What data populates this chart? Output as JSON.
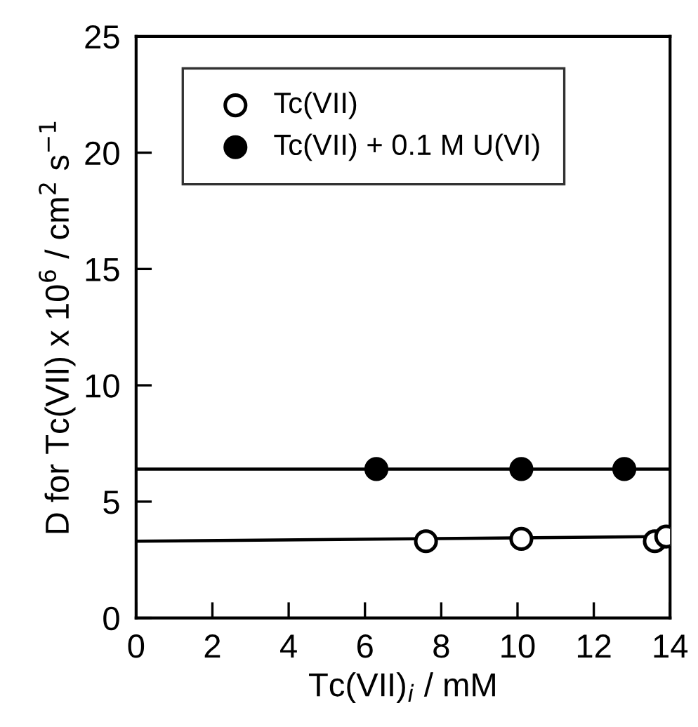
{
  "chart_data": {
    "type": "scatter",
    "xlabel": "Tc(VII)$_{i}$ / mM",
    "ylabel": "D for Tc(VII) x 10$^{6}$ / cm$^{2}$ s$^{−1}$",
    "xlim": [
      0,
      14
    ],
    "ylim": [
      0,
      25
    ],
    "xticks": [
      0,
      2,
      4,
      6,
      8,
      10,
      12,
      14
    ],
    "yticks": [
      0,
      5,
      10,
      15,
      20,
      25
    ],
    "grid": false,
    "legend": "top left",
    "series": [
      {
        "name": "Tc(VII)",
        "color": "#ffffff",
        "marker": "circle",
        "x": [
          7.6,
          10.1,
          13.6,
          13.9
        ],
        "values": [
          3.3,
          3.4,
          3.3,
          3.5
        ]
      },
      {
        "name": "Tc(VII) + 0.1 M U(VI)",
        "color": "#000000",
        "marker": "circle",
        "x": [
          6.3,
          10.1,
          12.8
        ],
        "values": [
          6.4,
          6.4,
          6.4
        ]
      },
      {
        "type": "line",
        "color": "#000000",
        "marker": "none",
        "line_style": "solid",
        "x": [
          0,
          14
        ],
        "values": [
          3.3,
          3.5
        ]
      },
      {
        "type": "line",
        "color": "#000000",
        "marker": "none",
        "line_style": "solid",
        "x": [
          0,
          14
        ],
        "values": [
          6.4,
          6.4
        ]
      }
    ]
  }
}
